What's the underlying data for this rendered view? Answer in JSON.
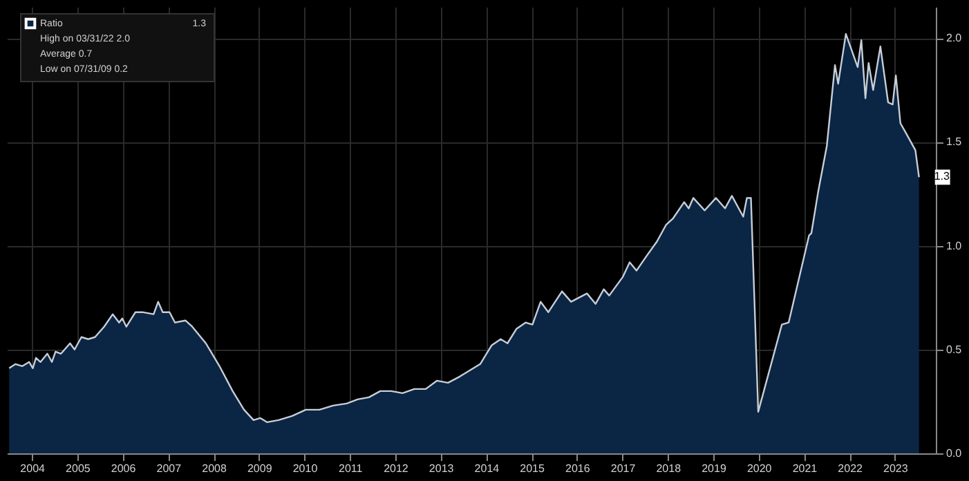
{
  "chart_data": {
    "type": "area",
    "x": [
      2004.0,
      2004.14,
      2004.29,
      2004.44,
      2004.52,
      2004.59,
      2004.69,
      2004.84,
      2004.94,
      2005.02,
      2005.14,
      2005.34,
      2005.44,
      2005.59,
      2005.74,
      2005.89,
      2006.09,
      2006.28,
      2006.42,
      2006.49,
      2006.58,
      2006.78,
      2006.93,
      2007.18,
      2007.28,
      2007.38,
      2007.53,
      2007.65,
      2007.88,
      2008.03,
      2008.33,
      2008.63,
      2008.92,
      2009.17,
      2009.38,
      2009.53,
      2009.68,
      2009.93,
      2010.23,
      2010.53,
      2010.83,
      2011.13,
      2011.43,
      2011.67,
      2011.92,
      2012.17,
      2012.41,
      2012.66,
      2012.92,
      2013.17,
      2013.42,
      2013.66,
      2013.92,
      2014.37,
      2014.62,
      2014.82,
      2014.97,
      2015.17,
      2015.37,
      2015.52,
      2015.7,
      2015.87,
      2016.17,
      2016.37,
      2016.72,
      2016.91,
      2017.09,
      2017.21,
      2017.51,
      2017.66,
      2017.81,
      2018.03,
      2018.26,
      2018.46,
      2018.61,
      2018.86,
      2018.96,
      2019.06,
      2019.31,
      2019.56,
      2019.76,
      2019.91,
      2020.16,
      2020.24,
      2020.33,
      2020.49,
      2021.01,
      2021.16,
      2021.61,
      2021.66,
      2021.81,
      2022.0,
      2022.18,
      2022.25,
      2022.42,
      2022.68,
      2022.76,
      2022.85,
      2022.92,
      2023.02,
      2023.18,
      2023.35,
      2023.45,
      2023.52,
      2023.62,
      2023.75,
      2023.95,
      2024.03
    ],
    "series": [
      {
        "name": "Ratio",
        "color": "#0b2545",
        "values": [
          0.41,
          0.43,
          0.42,
          0.44,
          0.41,
          0.46,
          0.44,
          0.48,
          0.44,
          0.49,
          0.48,
          0.53,
          0.5,
          0.56,
          0.55,
          0.56,
          0.61,
          0.67,
          0.63,
          0.65,
          0.61,
          0.68,
          0.68,
          0.67,
          0.73,
          0.68,
          0.68,
          0.63,
          0.64,
          0.61,
          0.53,
          0.42,
          0.3,
          0.21,
          0.16,
          0.17,
          0.15,
          0.16,
          0.18,
          0.21,
          0.21,
          0.23,
          0.24,
          0.26,
          0.27,
          0.3,
          0.3,
          0.29,
          0.31,
          0.31,
          0.35,
          0.34,
          0.37,
          0.43,
          0.52,
          0.55,
          0.53,
          0.6,
          0.63,
          0.62,
          0.73,
          0.68,
          0.78,
          0.73,
          0.77,
          0.72,
          0.79,
          0.76,
          0.85,
          0.92,
          0.88,
          0.95,
          1.02,
          1.1,
          1.13,
          1.21,
          1.18,
          1.23,
          1.17,
          1.23,
          1.18,
          1.24,
          1.14,
          1.23,
          1.23,
          0.2,
          0.62,
          0.63,
          1.05,
          1.06,
          1.26,
          1.48,
          1.87,
          1.78,
          2.02,
          1.86,
          1.99,
          1.71,
          1.88,
          1.75,
          1.96,
          1.69,
          1.68,
          1.82,
          1.59,
          1.54,
          1.46,
          1.33
        ]
      }
    ],
    "xlim": [
      2003.95,
      2024.4
    ],
    "xticks": [
      {
        "value": 2004.5,
        "label": "2004"
      },
      {
        "value": 2005.5,
        "label": "2005"
      },
      {
        "value": 2006.5,
        "label": "2006"
      },
      {
        "value": 2007.5,
        "label": "2007"
      },
      {
        "value": 2008.5,
        "label": "2008"
      },
      {
        "value": 2009.5,
        "label": "2009"
      },
      {
        "value": 2010.5,
        "label": "2010"
      },
      {
        "value": 2011.5,
        "label": "2011"
      },
      {
        "value": 2012.5,
        "label": "2012"
      },
      {
        "value": 2013.5,
        "label": "2013"
      },
      {
        "value": 2014.5,
        "label": "2014"
      },
      {
        "value": 2015.5,
        "label": "2015"
      },
      {
        "value": 2016.5,
        "label": "2016"
      },
      {
        "value": 2017.5,
        "label": "2017"
      },
      {
        "value": 2018.5,
        "label": "2018"
      },
      {
        "value": 2019.5,
        "label": "2019"
      },
      {
        "value": 2020.5,
        "label": "2020"
      },
      {
        "value": 2021.5,
        "label": "2021"
      },
      {
        "value": 2022.5,
        "label": "2022"
      },
      {
        "value": 2023.5,
        "label": "2023"
      }
    ],
    "ylim": [
      0,
      2.15
    ],
    "yticks": [
      {
        "value": 0,
        "label": "0.0"
      },
      {
        "value": 0.5,
        "label": "0.5"
      },
      {
        "value": 1,
        "label": "1.0"
      },
      {
        "value": 1.5,
        "label": "1.5"
      },
      {
        "value": 2,
        "label": "2.0"
      }
    ],
    "grid": true,
    "legend": "top left",
    "annotations": [
      {
        "text": "1.3",
        "x": 2024.03,
        "y": 1.33
      },
      "High on 03/31/22 2.0",
      "Average 0.7",
      "Low on 07/31/09 0.2"
    ]
  }
}
